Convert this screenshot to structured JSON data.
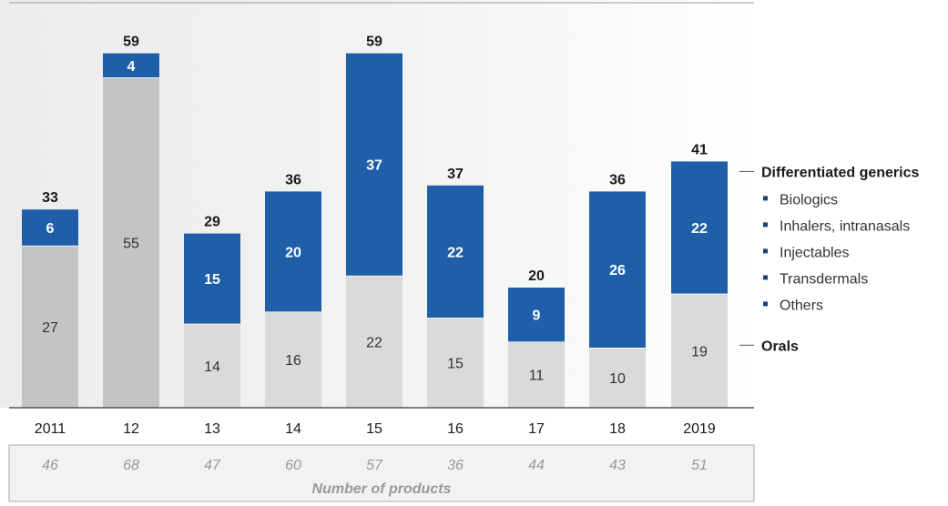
{
  "chart_data": {
    "type": "bar",
    "stacked": true,
    "categories": [
      "2011",
      "12",
      "13",
      "14",
      "15",
      "16",
      "17",
      "18",
      "2019"
    ],
    "series": [
      {
        "name": "Orals",
        "values": [
          27,
          55,
          14,
          16,
          22,
          15,
          11,
          10,
          19
        ],
        "color": "#dadada"
      },
      {
        "name": "Differentiated generics",
        "values": [
          6,
          4,
          15,
          20,
          37,
          22,
          9,
          26,
          22
        ],
        "color": "#1f5fa9"
      }
    ],
    "totals": [
      33,
      59,
      29,
      36,
      59,
      37,
      20,
      36,
      41
    ],
    "number_of_products": [
      46,
      68,
      47,
      60,
      57,
      36,
      44,
      43,
      51
    ],
    "number_of_products_label": "Number of products",
    "legend": {
      "differentiated_title": "Differentiated generics",
      "differentiated_items": [
        "Biologics",
        "Inhalers, intranasals",
        "Injectables",
        "Transdermals",
        "Others"
      ],
      "orals_title": "Orals"
    },
    "ylim": [
      0,
      65
    ],
    "highlight_background": {
      "from_category": "2011",
      "to_category": "12",
      "color": "#efefef"
    },
    "colors": {
      "orals_highlight": "#c4c4c4",
      "axis": "#555555"
    }
  }
}
